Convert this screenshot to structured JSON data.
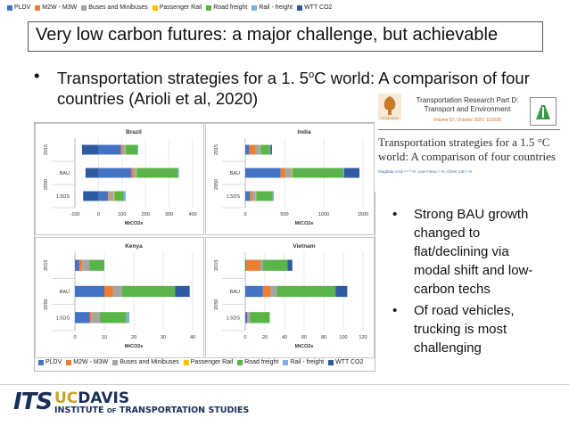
{
  "legend": [
    {
      "label": "PLDV",
      "color": "#4472c4"
    },
    {
      "label": "M2W - M3W",
      "color": "#ed7d31"
    },
    {
      "label": "Buses and Minibuses",
      "color": "#a5a5a5"
    },
    {
      "label": "Passenger Rail",
      "color": "#ffc000"
    },
    {
      "label": "Road freight",
      "color": "#5ab44a"
    },
    {
      "label": "Rail - freight",
      "color": "#7faedf"
    },
    {
      "label": "WTT CO2",
      "color": "#2e5aa0"
    }
  ],
  "slide": {
    "title": "Very low carbon futures: a major challenge, but achievable",
    "bullet_marker": "•",
    "bullet_text_a": "Transportation strategies for a 1. 5",
    "bullet_sup": "o",
    "bullet_text_b": "C world: A comparison of four countries (Arioli et al, 2020)"
  },
  "paper": {
    "journal": "Transportation Research Part D: Transport and Environment",
    "volume": "Volume 87, October 2020, 102526",
    "title": "Transportation strategies for a 1.5 °C world: A comparison of four countries",
    "authors": "Magdala Arioli ᵃ ᵇ ª ✉, Lew Fulton ᵇ ✉, Oliver Lah ᶜ ✉",
    "publisher_logo": "ELSEVIER"
  },
  "side_bullets": [
    {
      "marker": "•",
      "text": "Strong BAU growth changed to flat/declining via modal shift and low-carbon techs"
    },
    {
      "marker": "•",
      "text": "Of road vehicles, trucking is most challenging"
    }
  ],
  "footer": {
    "its": "ITS",
    "uc": "UC",
    "davis": "DAVIS",
    "institute_a": "INSTITUTE ",
    "institute_of": "OF",
    "institute_b": " TRANSPORTATION STUDIES"
  },
  "chart_data": [
    {
      "type": "bar",
      "orientation": "horizontal",
      "stacked": true,
      "title": "Brazil",
      "xlabel": "MtCO2e",
      "xlim": [
        -100,
        400
      ],
      "xticks": [
        -100,
        0,
        100,
        200,
        300,
        400
      ],
      "group_labels": [
        "2015",
        "2050"
      ],
      "categories": [
        "",
        "BAU",
        "1.5DS"
      ],
      "series": [
        {
          "name": "PLDV",
          "values": [
            95,
            140,
            40
          ]
        },
        {
          "name": "M2W - M3W",
          "values": [
            5,
            8,
            3
          ]
        },
        {
          "name": "Buses and Minibuses",
          "values": [
            15,
            12,
            20
          ]
        },
        {
          "name": "Passenger Rail",
          "values": [
            1,
            2,
            5
          ]
        },
        {
          "name": "Road freight",
          "values": [
            50,
            175,
            40
          ]
        },
        {
          "name": "Rail - freight",
          "values": [
            3,
            5,
            8
          ]
        },
        {
          "name": "WTT CO2",
          "values": [
            -70,
            -55,
            -65
          ]
        }
      ]
    },
    {
      "type": "bar",
      "orientation": "horizontal",
      "stacked": true,
      "title": "India",
      "xlabel": "MtCO2e",
      "xlim": [
        0,
        1500
      ],
      "xticks": [
        0,
        500,
        1000,
        1500
      ],
      "group_labels": [
        "2015",
        "2050"
      ],
      "categories": [
        "",
        "BAU",
        "1.5DS"
      ],
      "series": [
        {
          "name": "PLDV",
          "values": [
            50,
            450,
            60
          ]
        },
        {
          "name": "M2W - M3W",
          "values": [
            80,
            60,
            30
          ]
        },
        {
          "name": "Buses and Minibuses",
          "values": [
            60,
            80,
            40
          ]
        },
        {
          "name": "Passenger Rail",
          "values": [
            5,
            10,
            10
          ]
        },
        {
          "name": "Road freight",
          "values": [
            120,
            650,
            210
          ]
        },
        {
          "name": "Rail - freight",
          "values": [
            5,
            10,
            15
          ]
        },
        {
          "name": "WTT CO2",
          "values": [
            20,
            195,
            0
          ]
        }
      ]
    },
    {
      "type": "bar",
      "orientation": "horizontal",
      "stacked": true,
      "title": "Kenya",
      "xlabel": "MtCO2e",
      "xlim": [
        0,
        40
      ],
      "xticks": [
        0,
        10,
        20,
        30,
        40
      ],
      "group_labels": [
        "2015",
        "2050"
      ],
      "categories": [
        "",
        "BAU",
        "1.5DS"
      ],
      "series": [
        {
          "name": "PLDV",
          "values": [
            1.5,
            10,
            5
          ]
        },
        {
          "name": "M2W - M3W",
          "values": [
            1,
            3,
            0.5
          ]
        },
        {
          "name": "Buses and Minibuses",
          "values": [
            2.5,
            3,
            3
          ]
        },
        {
          "name": "Passenger Rail",
          "values": [
            0,
            0,
            0
          ]
        },
        {
          "name": "Road freight",
          "values": [
            5,
            18,
            9
          ]
        },
        {
          "name": "Rail - freight",
          "values": [
            0,
            0,
            1
          ]
        },
        {
          "name": "WTT CO2",
          "values": [
            0,
            5,
            0
          ]
        }
      ]
    },
    {
      "type": "bar",
      "orientation": "horizontal",
      "stacked": true,
      "title": "Vietnam",
      "xlabel": "MtCO2e",
      "xlim": [
        0,
        120
      ],
      "xticks": [
        0,
        20,
        40,
        60,
        80,
        100,
        120
      ],
      "group_labels": [
        "2015",
        "2050"
      ],
      "categories": [
        "",
        "BAU",
        "1.5DS"
      ],
      "series": [
        {
          "name": "PLDV",
          "values": [
            1,
            18,
            2
          ]
        },
        {
          "name": "M2W - M3W",
          "values": [
            14,
            8,
            1
          ]
        },
        {
          "name": "Buses and Minibuses",
          "values": [
            3,
            6,
            2
          ]
        },
        {
          "name": "Passenger Rail",
          "values": [
            0,
            0,
            0
          ]
        },
        {
          "name": "Road freight",
          "values": [
            25,
            60,
            20
          ]
        },
        {
          "name": "Rail - freight",
          "values": [
            0,
            0,
            0
          ]
        },
        {
          "name": "WTT CO2",
          "values": [
            5,
            12,
            0
          ]
        }
      ]
    }
  ]
}
